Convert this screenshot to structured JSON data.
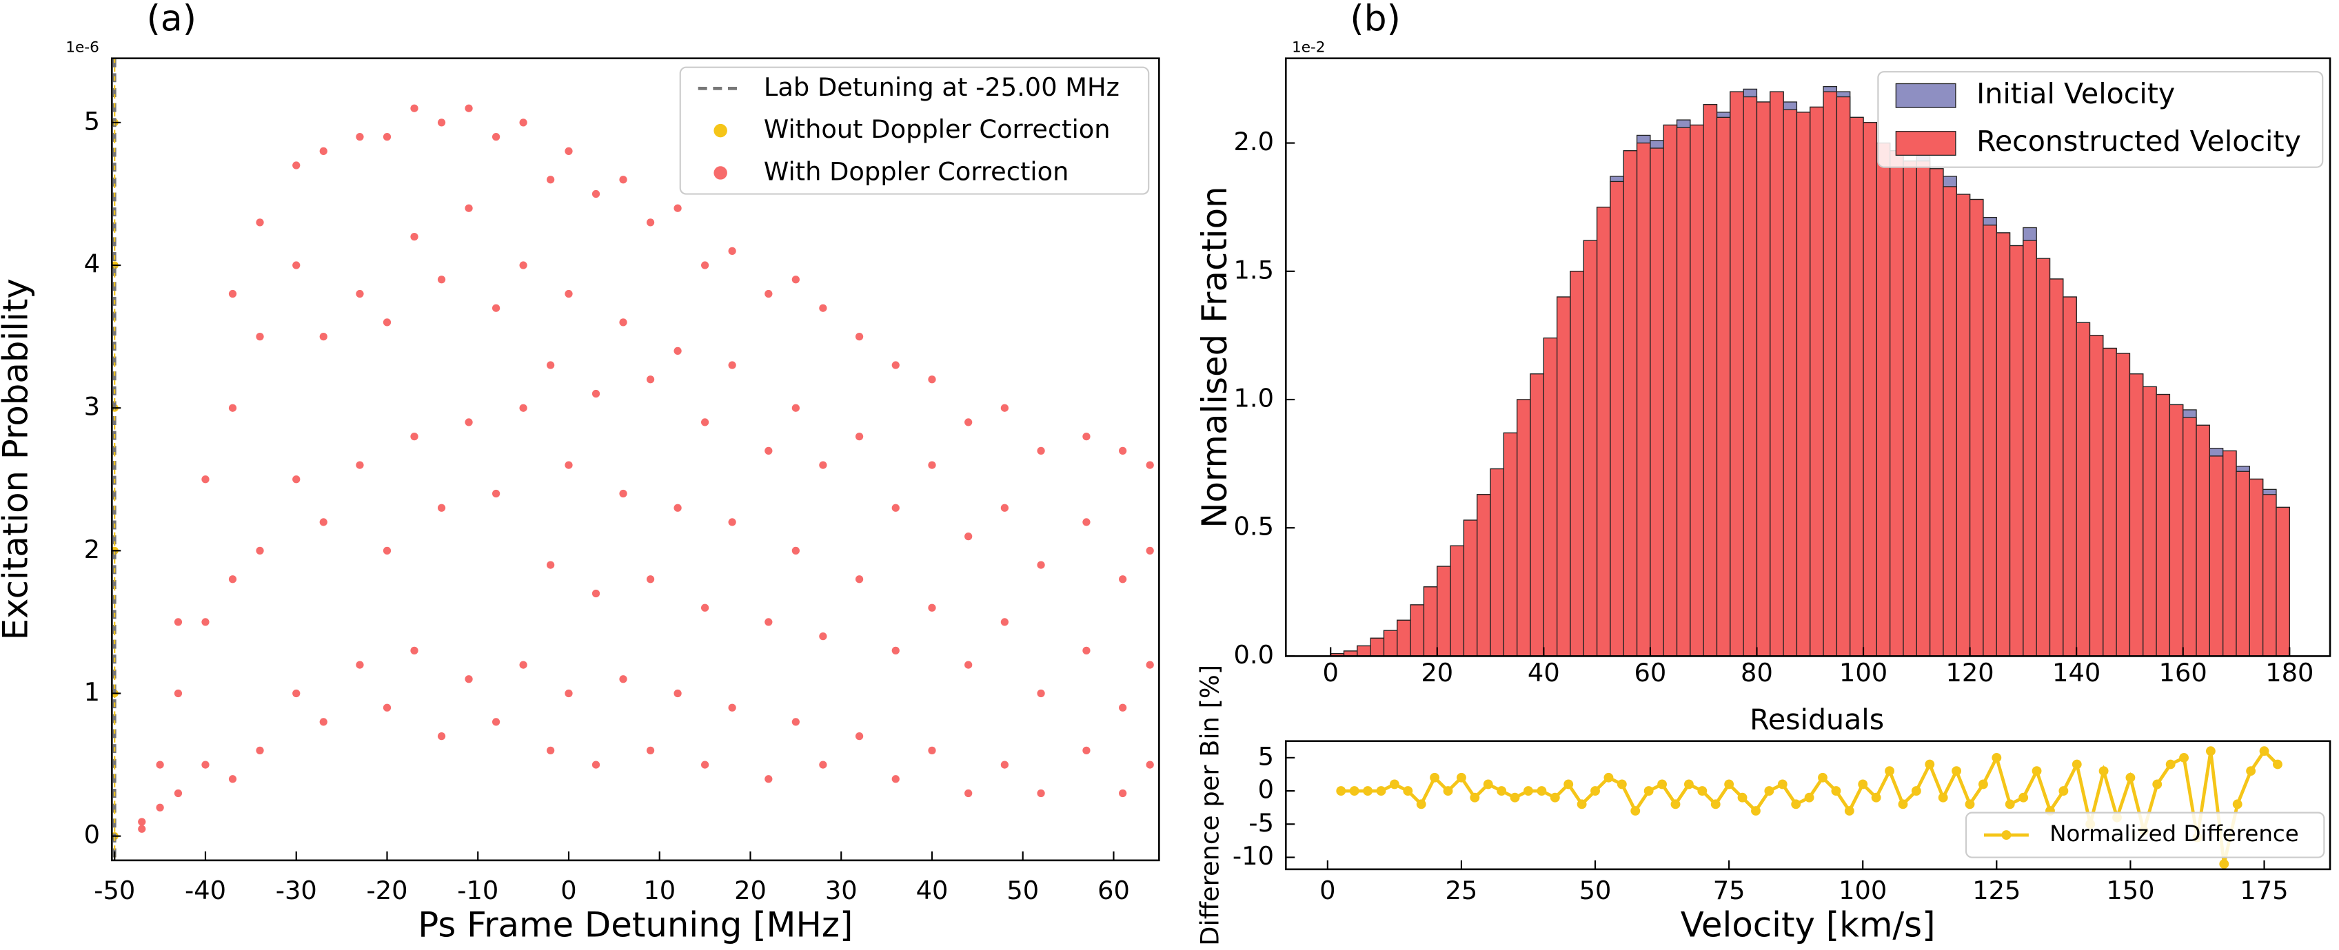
{
  "chart_data": [
    {
      "type": "scatter",
      "title": "(a)",
      "offset_label": "1e-6",
      "x_label": "Ps Frame Detuning [MHz]",
      "y_label": "Excitation Probability",
      "xlim": [
        -50.3,
        65
      ],
      "ylim": [
        -0.17,
        5.45
      ],
      "xticks": [
        -50,
        -40,
        -30,
        -20,
        -10,
        0,
        10,
        20,
        30,
        40,
        50,
        60
      ],
      "yticks": [
        0,
        1,
        2,
        3,
        4,
        5
      ],
      "legend": "upper right",
      "vline": {
        "value": -50,
        "label": "Lab Detuning at -25.00 MHz",
        "color": "#777777"
      },
      "series": [
        {
          "name": "Without Doppler Correction",
          "color": "#f5c518",
          "x": [
            -50,
            -50,
            -50,
            -50,
            -50,
            -50
          ],
          "values": [
            0,
            1,
            2,
            3,
            4,
            5
          ]
        },
        {
          "name": "With Doppler Correction",
          "color": "#f76b6b",
          "x": [
            -47,
            -47,
            -45,
            -45,
            -43,
            -43,
            -43,
            -40,
            -40,
            -40,
            -37,
            -37,
            -37,
            -37,
            -34,
            -34,
            -34,
            -34,
            -30,
            -30,
            -30,
            -30,
            -27,
            -27,
            -27,
            -27,
            -23,
            -23,
            -23,
            -23,
            -20,
            -20,
            -20,
            -20,
            -17,
            -17,
            -17,
            -17,
            -14,
            -14,
            -14,
            -14,
            -11,
            -11,
            -11,
            -11,
            -8,
            -8,
            -8,
            -8,
            -5,
            -5,
            -5,
            -5,
            -2,
            -2,
            -2,
            -2,
            0,
            0,
            0,
            0,
            3,
            3,
            3,
            3,
            6,
            6,
            6,
            6,
            9,
            9,
            9,
            9,
            12,
            12,
            12,
            12,
            15,
            15,
            15,
            15,
            18,
            18,
            18,
            18,
            22,
            22,
            22,
            22,
            25,
            25,
            25,
            25,
            28,
            28,
            28,
            28,
            32,
            32,
            32,
            32,
            36,
            36,
            36,
            36,
            40,
            40,
            40,
            40,
            44,
            44,
            44,
            44,
            48,
            48,
            48,
            48,
            52,
            52,
            52,
            52,
            57,
            57,
            57,
            57,
            61,
            61,
            61,
            61,
            64,
            64,
            64,
            64
          ],
          "values": [
            0.05,
            0.1,
            0.2,
            0.5,
            0.3,
            1.0,
            1.5,
            0.5,
            1.5,
            2.5,
            0.4,
            1.8,
            3.0,
            3.8,
            0.6,
            2.0,
            3.5,
            4.3,
            1.0,
            2.5,
            4.0,
            4.7,
            0.8,
            2.2,
            3.5,
            4.8,
            1.2,
            2.6,
            3.8,
            4.9,
            0.9,
            2.0,
            3.6,
            4.9,
            1.3,
            2.8,
            4.2,
            5.1,
            0.7,
            2.3,
            3.9,
            5.0,
            1.1,
            2.9,
            4.4,
            5.1,
            0.8,
            2.4,
            3.7,
            4.9,
            1.2,
            3.0,
            4.0,
            5.0,
            0.6,
            1.9,
            3.3,
            4.6,
            1.0,
            2.6,
            3.8,
            4.8,
            0.5,
            1.7,
            3.1,
            4.5,
            1.1,
            2.4,
            3.6,
            4.6,
            0.6,
            1.8,
            3.2,
            4.3,
            1.0,
            2.3,
            3.4,
            4.4,
            0.5,
            1.6,
            2.9,
            4.0,
            0.9,
            2.2,
            3.3,
            4.1,
            0.4,
            1.5,
            2.7,
            3.8,
            0.8,
            2.0,
            3.0,
            3.9,
            0.5,
            1.4,
            2.6,
            3.7,
            0.7,
            1.8,
            2.8,
            3.5,
            0.4,
            1.3,
            2.3,
            3.3,
            0.6,
            1.6,
            2.6,
            3.2,
            0.3,
            1.2,
            2.1,
            2.9,
            0.5,
            1.5,
            2.3,
            3.0,
            0.3,
            1.0,
            1.9,
            2.7,
            0.6,
            1.3,
            2.2,
            2.8,
            0.3,
            0.9,
            1.8,
            2.7,
            0.5,
            1.2,
            2.0,
            2.6
          ]
        }
      ]
    },
    {
      "type": "histogram",
      "title": "(b)",
      "offset_label": "1e-2",
      "y_label": "Normalised Fraction",
      "xlim": [
        -8.4,
        187.6
      ],
      "ylim": [
        0,
        2.33
      ],
      "xticks": [
        0,
        20,
        40,
        60,
        80,
        100,
        120,
        140,
        160,
        180
      ],
      "yticks": [
        {
          "value": 0,
          "label": "0.0"
        },
        {
          "value": 0.5,
          "label": "0.5"
        },
        {
          "value": 1,
          "label": "1.0"
        },
        {
          "value": 1.5,
          "label": "1.5"
        },
        {
          "value": 2,
          "label": "2.0"
        }
      ],
      "legend": "upper right",
      "bins": [
        0,
        2.5,
        5,
        7.5,
        10,
        12.5,
        15,
        17.5,
        20,
        22.5,
        25,
        27.5,
        30,
        32.5,
        35,
        37.5,
        40,
        42.5,
        45,
        47.5,
        50,
        52.5,
        55,
        57.5,
        60,
        62.5,
        65,
        67.5,
        70,
        72.5,
        75,
        77.5,
        80,
        82.5,
        85,
        87.5,
        90,
        92.5,
        95,
        97.5,
        100,
        102.5,
        105,
        107.5,
        110,
        112.5,
        115,
        117.5,
        120,
        122.5,
        125,
        127.5,
        130,
        132.5,
        135,
        137.5,
        140,
        142.5,
        145,
        147.5,
        150,
        152.5,
        155,
        157.5,
        160,
        162.5,
        165,
        167.5,
        170,
        172.5,
        175,
        177.5,
        180
      ],
      "series": [
        {
          "name": "Initial Velocity",
          "color": "#8e8fc2",
          "values": [
            0.01,
            0.02,
            0.04,
            0.07,
            0.1,
            0.14,
            0.2,
            0.27,
            0.35,
            0.43,
            0.53,
            0.63,
            0.73,
            0.87,
            1.0,
            1.1,
            1.24,
            1.4,
            1.5,
            1.62,
            1.75,
            1.87,
            1.97,
            2.03,
            2.01,
            2.07,
            2.09,
            2.07,
            2.15,
            2.12,
            2.2,
            2.21,
            2.16,
            2.2,
            2.16,
            2.12,
            2.14,
            2.22,
            2.2,
            2.1,
            2.08,
            2.0,
            1.97,
            1.93,
            1.95,
            1.9,
            1.87,
            1.8,
            1.78,
            1.71,
            1.65,
            1.6,
            1.67,
            1.55,
            1.47,
            1.4,
            1.3,
            1.25,
            1.2,
            1.18,
            1.1,
            1.05,
            1.02,
            0.98,
            0.96,
            0.9,
            0.81,
            0.8,
            0.74,
            0.69,
            0.65,
            0.58
          ]
        },
        {
          "name": "Reconstructed Velocity",
          "color": "#f45f5f",
          "values": [
            0.01,
            0.02,
            0.04,
            0.07,
            0.1,
            0.14,
            0.2,
            0.27,
            0.35,
            0.43,
            0.53,
            0.63,
            0.73,
            0.87,
            1.0,
            1.1,
            1.24,
            1.4,
            1.5,
            1.62,
            1.75,
            1.85,
            1.97,
            2.0,
            1.98,
            2.07,
            2.06,
            2.07,
            2.15,
            2.1,
            2.2,
            2.18,
            2.16,
            2.2,
            2.13,
            2.12,
            2.14,
            2.2,
            2.18,
            2.1,
            2.08,
            2.0,
            1.97,
            1.93,
            1.93,
            1.9,
            1.83,
            1.8,
            1.78,
            1.68,
            1.65,
            1.6,
            1.62,
            1.55,
            1.47,
            1.4,
            1.3,
            1.25,
            1.2,
            1.18,
            1.1,
            1.05,
            1.02,
            0.98,
            0.93,
            0.9,
            0.78,
            0.8,
            0.72,
            0.69,
            0.63,
            0.58
          ]
        }
      ]
    },
    {
      "type": "line",
      "title": "Residuals",
      "x_label": "Velocity [km/s]",
      "y_label": "Difference per Bin [%]",
      "xlim": [
        -7.8,
        187.3
      ],
      "ylim": [
        -11.8,
        7.5
      ],
      "xticks": [
        0,
        25,
        50,
        75,
        100,
        125,
        150,
        175
      ],
      "yticks": [
        5,
        0,
        -5,
        -10
      ],
      "legend": "lower right",
      "x": [
        2.5,
        5,
        7.5,
        10,
        12.5,
        15,
        17.5,
        20,
        22.5,
        25,
        27.5,
        30,
        32.5,
        35,
        37.5,
        40,
        42.5,
        45,
        47.5,
        50,
        52.5,
        55,
        57.5,
        60,
        62.5,
        65,
        67.5,
        70,
        72.5,
        75,
        77.5,
        80,
        82.5,
        85,
        87.5,
        90,
        92.5,
        95,
        97.5,
        100,
        102.5,
        105,
        107.5,
        110,
        112.5,
        115,
        117.5,
        120,
        122.5,
        125,
        127.5,
        130,
        132.5,
        135,
        137.5,
        140,
        142.5,
        145,
        147.5,
        150,
        152.5,
        155,
        157.5,
        160,
        162.5,
        165,
        167.5,
        170,
        172.5,
        175,
        177.5
      ],
      "series": [
        {
          "name": "Normalized Difference",
          "color": "#f5c518",
          "values": [
            0,
            0,
            0,
            0,
            1,
            0,
            -2,
            2,
            0,
            2,
            -1,
            1,
            0,
            -1,
            0,
            0,
            -1,
            1,
            -2,
            0,
            2,
            1,
            -3,
            0,
            1,
            -2,
            1,
            0,
            -2,
            1,
            -1,
            -3,
            0,
            1,
            -2,
            -1,
            2,
            0,
            -3,
            1,
            -1,
            3,
            -2,
            0,
            4,
            -1,
            3,
            -2,
            1,
            5,
            -2,
            -1,
            3,
            -3,
            0,
            4,
            -5,
            3,
            -4,
            2,
            -6,
            1,
            4,
            5,
            -7,
            6,
            -11,
            -2,
            3,
            6,
            4
          ]
        }
      ]
    }
  ]
}
